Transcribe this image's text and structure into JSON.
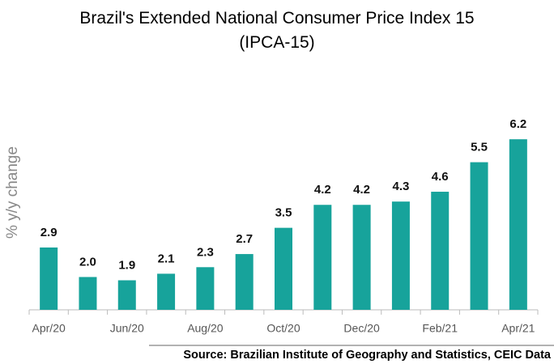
{
  "chart_data": {
    "type": "bar",
    "title": "Brazil's Extended National Consumer Price Index 15 (IPCA-15)",
    "y_label": "% y/y change",
    "source": "Source: Brazilian Institute of Geography and Statistics, CEIC Data",
    "categories": [
      "Apr/20",
      null,
      "Jun/20",
      null,
      "Aug/20",
      null,
      "Oct/20",
      null,
      "Dec/20",
      null,
      "Feb/21",
      null,
      "Apr/21"
    ],
    "values": [
      2.9,
      2.0,
      1.9,
      2.1,
      2.3,
      2.7,
      3.5,
      4.2,
      4.2,
      4.3,
      4.6,
      5.5,
      6.2
    ],
    "value_labels": [
      "2.9",
      "2.0",
      "1.9",
      "2.1",
      "2.3",
      "2.7",
      "3.5",
      "4.2",
      "4.2",
      "4.3",
      "4.6",
      "5.5",
      "6.2"
    ],
    "color": "#17a39b",
    "ylim": [
      1,
      6.5
    ]
  }
}
